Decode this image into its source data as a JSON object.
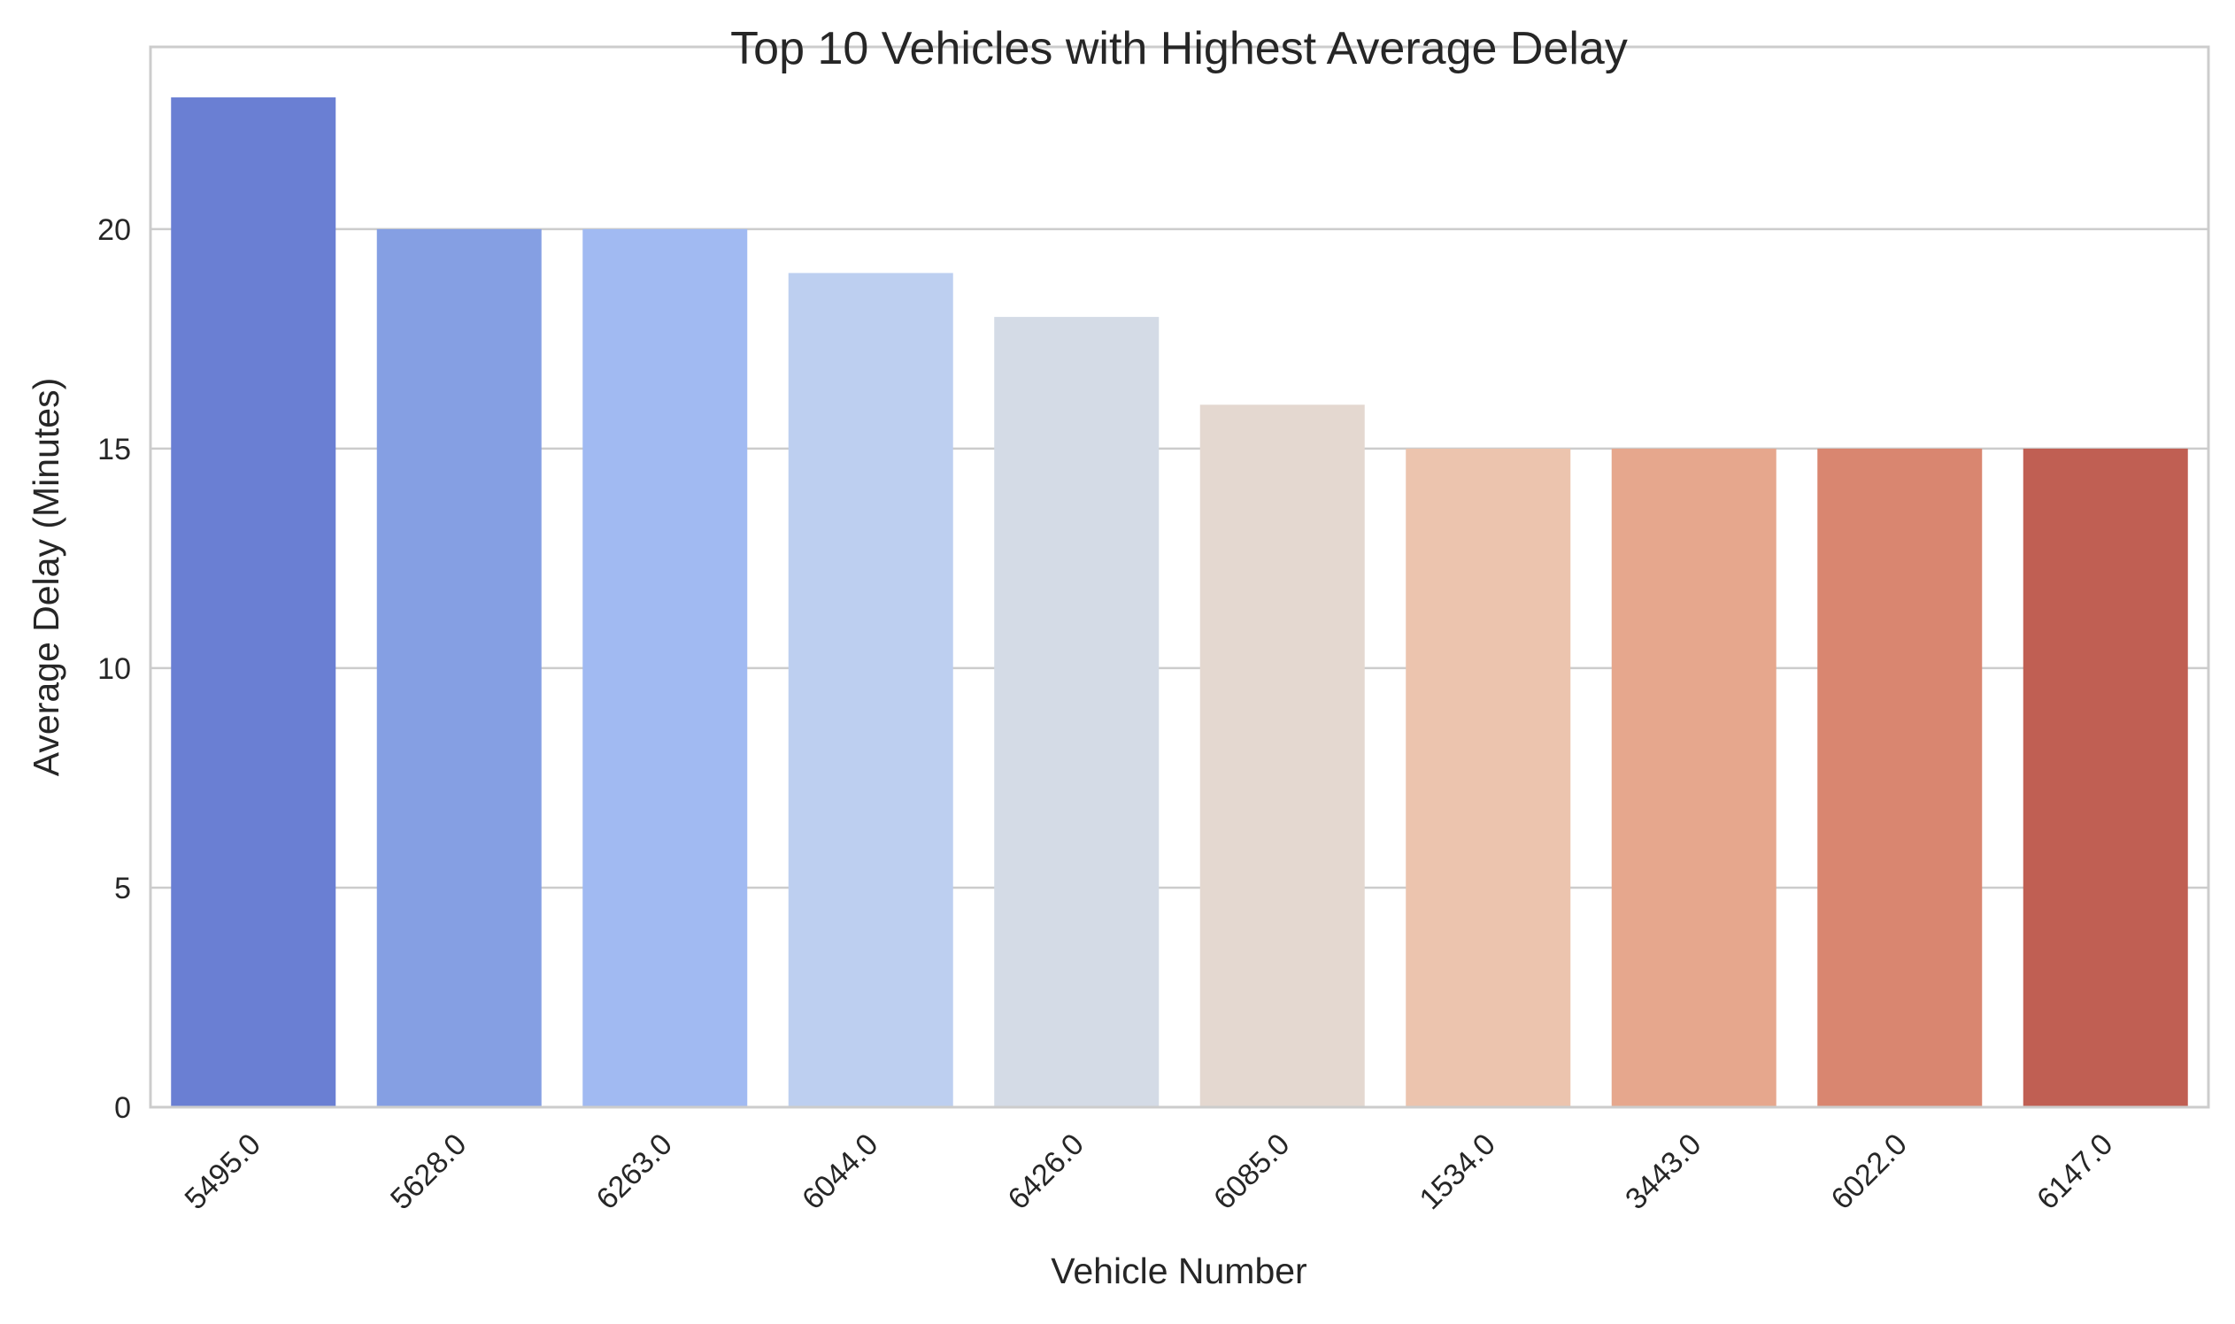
{
  "chart_data": {
    "type": "bar",
    "title": "Top 10 Vehicles with Highest Average Delay",
    "xlabel": "Vehicle Number",
    "ylabel": "Average Delay (Minutes)",
    "categories": [
      "5495.0",
      "5628.0",
      "6263.0",
      "6044.0",
      "6426.0",
      "6085.0",
      "1534.0",
      "3443.0",
      "6022.0",
      "6147.0"
    ],
    "values": [
      23,
      20,
      20,
      19,
      18,
      16,
      15,
      15,
      15,
      15
    ],
    "colors": [
      "#6a7fd3",
      "#859fe3",
      "#a1baf2",
      "#bdcff0",
      "#d4dbe6",
      "#e4d8d0",
      "#ecc4ae",
      "#e6a78d",
      "#d98670",
      "#c05f53"
    ],
    "ylim": [
      0,
      24.15
    ],
    "yticks": [
      0,
      5,
      10,
      15,
      20
    ],
    "grid": true,
    "style": {
      "grid_color": "#cccccc",
      "spine_color": "#cccccc"
    }
  }
}
